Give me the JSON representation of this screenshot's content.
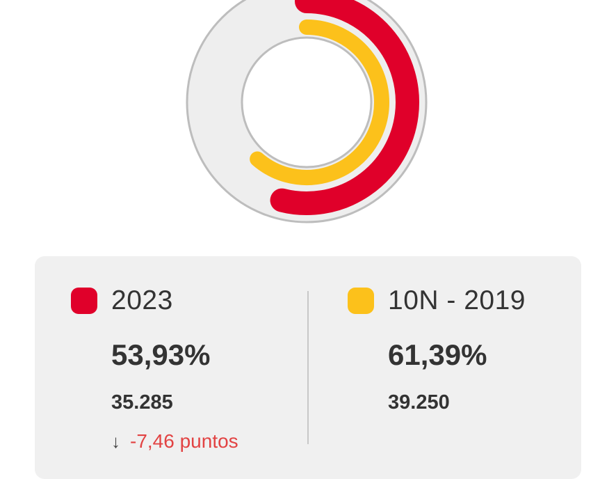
{
  "chart_data": {
    "type": "radial-bar",
    "max": 100,
    "series": [
      {
        "name": "2023",
        "value": 53.93,
        "label": "53,93%",
        "votes": "35.285",
        "color": "#e0002a"
      },
      {
        "name": "10N - 2019",
        "value": 61.39,
        "label": "61,39%",
        "votes": "39.250",
        "color": "#fcc11b"
      }
    ],
    "track_color": "#eeeeee"
  },
  "summary": {
    "current": {
      "legend_label": "2023",
      "percent": "53,93%",
      "votes": "35.285",
      "change_arrow": "↓",
      "change_text": "-7,46 puntos",
      "color": "#e0002a"
    },
    "previous": {
      "legend_label": "10N - 2019",
      "percent": "61,39%",
      "votes": "39.250",
      "color": "#fcc11b"
    }
  }
}
